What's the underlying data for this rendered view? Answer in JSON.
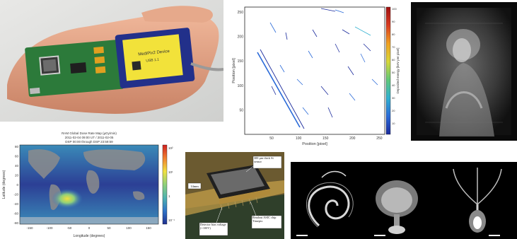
{
  "collage": {
    "panels": [
      {
        "id": "handheld-device"
      },
      {
        "id": "track-image"
      },
      {
        "id": "painting-xray"
      },
      {
        "id": "dose-rate-map"
      },
      {
        "id": "sensor-assembly"
      },
      {
        "id": "specimen-xrays"
      }
    ]
  },
  "track_image": {
    "xlabel": "Position [pixel]",
    "ylabel": "Position [pixel]",
    "cbar_label": "Deposited energy [keV per pixel]",
    "x_ticks": [
      "50",
      "100",
      "150",
      "200",
      "250"
    ],
    "y_ticks": [
      "50",
      "100",
      "150",
      "200",
      "250"
    ],
    "cbar_ticks": [
      "100",
      "90",
      "80",
      "70",
      "60",
      "50",
      "40",
      "30",
      "20",
      "10"
    ]
  },
  "device": {
    "label_line1": "MediPix2 Device",
    "label_line2": "USB 1.1"
  },
  "dose_map": {
    "title_line1": "RAM Global Dose Rate Map (µGy/min)",
    "title_line2": "2011-02-04 09:00 UT / 2011-02-05",
    "title_line3": "DSP 00:00 through DSP 23:59:59",
    "xlabel": "Longitude (degrees)",
    "ylabel": "Latitude (degrees)",
    "x_ticks": [
      "-150",
      "-100",
      "-50",
      "0",
      "50",
      "100",
      "150"
    ],
    "y_ticks": [
      "80",
      "60",
      "40",
      "20",
      "0",
      "-20",
      "-40",
      "-60",
      "-80"
    ],
    "cbar_ticks": [
      "10²",
      "10¹",
      "1",
      "10⁻¹"
    ]
  },
  "assembly": {
    "label_sensor": "300 µm thick Si sensor",
    "label_14mm": "14mm",
    "label_chip": "Readout ASIC chip Timepix",
    "label_bias": "Detector bias voltage (+100V)"
  },
  "colors": {
    "track_cmap": [
      "#1a2a9c",
      "#2a6ad8",
      "#30b0d0",
      "#60c878",
      "#d8d838",
      "#f0a020",
      "#d83a20",
      "#a01010"
    ],
    "dose_cmap": [
      "#1f2f8f",
      "#2f73c7",
      "#4fb3b0",
      "#8fd07a",
      "#f0e040",
      "#f08030",
      "#d02020"
    ]
  }
}
